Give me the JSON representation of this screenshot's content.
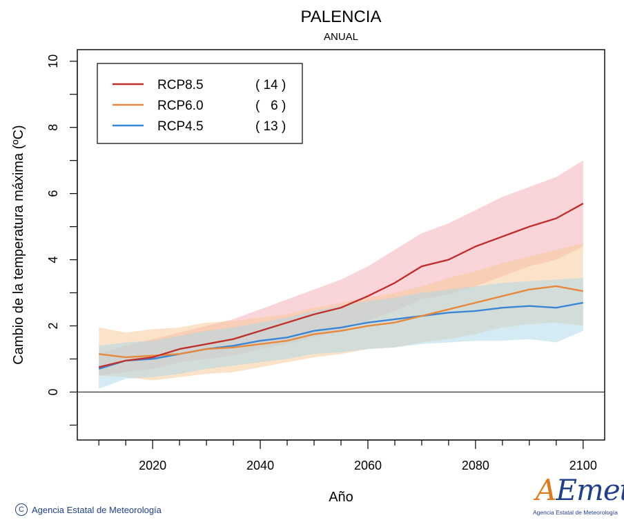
{
  "chart_data": {
    "type": "line",
    "title": "PALENCIA",
    "subtitle": "ANUAL",
    "xlabel": "Año",
    "ylabel": "Cambio  de la temperatura máxima (ºC)",
    "xlim": [
      2006,
      2104
    ],
    "ylim": [
      -1.45,
      10.35
    ],
    "x_ticks": [
      2020,
      2040,
      2060,
      2080,
      2100
    ],
    "y_ticks": [
      0,
      2,
      4,
      6,
      8,
      10
    ],
    "zero_line": true,
    "grid": false,
    "legend_position": "top-left",
    "x": [
      2010,
      2015,
      2020,
      2025,
      2030,
      2035,
      2040,
      2045,
      2050,
      2055,
      2060,
      2065,
      2070,
      2075,
      2080,
      2085,
      2090,
      2095,
      2100
    ],
    "series": [
      {
        "name": "RCP8.5",
        "count": "( 14 )",
        "color": "#c0302a",
        "band_color": "#f4a9b4",
        "values": [
          0.75,
          0.95,
          1.05,
          1.3,
          1.45,
          1.6,
          1.85,
          2.1,
          2.35,
          2.55,
          2.9,
          3.3,
          3.8,
          4.0,
          4.4,
          4.7,
          5.0,
          5.25,
          5.7
        ],
        "band_low": [
          0.5,
          0.6,
          0.7,
          0.9,
          1.0,
          1.1,
          1.3,
          1.45,
          1.65,
          1.85,
          2.15,
          2.45,
          2.8,
          2.95,
          3.2,
          3.5,
          3.8,
          4.0,
          4.4
        ],
        "band_high": [
          1.15,
          1.4,
          1.6,
          1.8,
          2.0,
          2.2,
          2.5,
          2.8,
          3.1,
          3.4,
          3.8,
          4.3,
          4.8,
          5.1,
          5.5,
          5.9,
          6.2,
          6.5,
          7.0
        ]
      },
      {
        "name": "RCP6.0",
        "count": "(   6 )",
        "color": "#e8883a",
        "band_color": "#f8c896",
        "values": [
          1.15,
          1.05,
          1.1,
          1.15,
          1.3,
          1.35,
          1.45,
          1.55,
          1.75,
          1.85,
          2.0,
          2.1,
          2.3,
          2.5,
          2.7,
          2.9,
          3.1,
          3.2,
          3.05
        ],
        "band_low": [
          0.5,
          0.45,
          0.35,
          0.45,
          0.55,
          0.6,
          0.75,
          0.9,
          1.05,
          1.15,
          1.3,
          1.35,
          1.5,
          1.6,
          1.75,
          1.95,
          2.05,
          2.1,
          2.0
        ],
        "band_high": [
          1.95,
          1.8,
          1.9,
          1.95,
          2.1,
          2.15,
          2.25,
          2.35,
          2.55,
          2.7,
          2.85,
          3.0,
          3.2,
          3.45,
          3.65,
          3.9,
          4.1,
          4.3,
          4.5
        ]
      },
      {
        "name": "RCP4.5",
        "count": "( 13 )",
        "color": "#3a86d6",
        "band_color": "#a9d8ea",
        "values": [
          0.7,
          0.95,
          1.0,
          1.15,
          1.3,
          1.4,
          1.55,
          1.65,
          1.85,
          1.95,
          2.1,
          2.2,
          2.3,
          2.4,
          2.45,
          2.55,
          2.6,
          2.55,
          2.7
        ],
        "band_low": [
          0.1,
          0.4,
          0.45,
          0.55,
          0.7,
          0.8,
          0.9,
          1.0,
          1.15,
          1.2,
          1.3,
          1.35,
          1.45,
          1.5,
          1.55,
          1.55,
          1.6,
          1.5,
          1.85
        ],
        "band_high": [
          1.4,
          1.5,
          1.55,
          1.7,
          1.85,
          1.95,
          2.1,
          2.25,
          2.45,
          2.6,
          2.75,
          2.85,
          3.0,
          3.1,
          3.2,
          3.3,
          3.35,
          3.4,
          3.45
        ]
      }
    ]
  },
  "footer": {
    "credit_symbol": "C",
    "credit": "Agencia Estatal de Meteorología",
    "logo_text_accent": "A",
    "logo_text": "Emet",
    "logo_subtext": "Agencia Estatal de Meteorología"
  }
}
